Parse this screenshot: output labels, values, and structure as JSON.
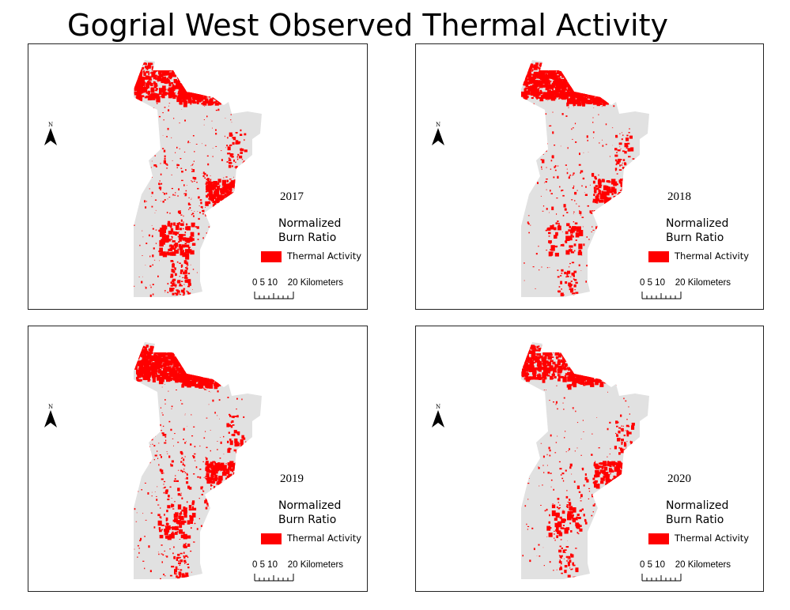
{
  "title": "Gogrial West Observed Thermal Activity",
  "colors": {
    "burn": "#ff0000",
    "land": "#e1e1e1",
    "frame": "#222222"
  },
  "panels": [
    {
      "year": "2017",
      "legend_title": "Normalized Burn Ratio",
      "legend_item": "Thermal Activity",
      "scale_label": "0 5 10    20 Kilometers",
      "north_label": "N",
      "north_icon": "north-arrow"
    },
    {
      "year": "2018",
      "legend_title": "Normalized Burn Ratio",
      "legend_item": "Thermal Activity",
      "scale_label": "0 5 10    20 Kilometers",
      "north_label": "N",
      "north_icon": "north-arrow"
    },
    {
      "year": "2019",
      "legend_title": "Normalized Burn Ratio",
      "legend_item": "Thermal Activity",
      "scale_label": "0 5 10    20 Kilometers",
      "north_label": "N",
      "north_icon": "north-arrow"
    },
    {
      "year": "2020",
      "legend_title": "Normalized Burn Ratio",
      "legend_item": "Thermal Activity",
      "scale_label": "0 5 10    20 Kilometers",
      "north_label": "N",
      "north_icon": "north-arrow"
    }
  ]
}
